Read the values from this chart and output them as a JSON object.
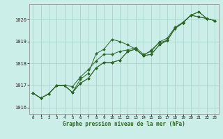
{
  "title": "Graphe pression niveau de la mer (hPa)",
  "bg_color": "#cceee8",
  "grid_color": "#aad4cc",
  "line_color": "#2d6628",
  "xlim": [
    -0.5,
    23.5
  ],
  "ylim": [
    1015.7,
    1020.7
  ],
  "yticks": [
    1016,
    1017,
    1018,
    1019,
    1020
  ],
  "xticks": [
    0,
    1,
    2,
    3,
    4,
    5,
    6,
    7,
    8,
    9,
    10,
    11,
    12,
    13,
    14,
    15,
    16,
    17,
    18,
    19,
    20,
    21,
    22,
    23
  ],
  "series": [
    [
      1016.65,
      1016.42,
      1016.62,
      1017.0,
      1017.0,
      1016.68,
      1017.28,
      1017.55,
      1018.45,
      1018.65,
      1019.1,
      1019.0,
      1018.85,
      1018.65,
      1018.35,
      1018.62,
      1018.95,
      1019.05,
      1019.6,
      1019.85,
      1020.2,
      1020.12,
      1020.05,
      1019.95
    ],
    [
      1016.65,
      1016.42,
      1016.62,
      1017.0,
      1017.0,
      1016.68,
      1017.1,
      1017.32,
      1017.8,
      1018.05,
      1018.05,
      1018.15,
      1018.55,
      1018.65,
      1018.35,
      1018.42,
      1018.85,
      1019.05,
      1019.6,
      1019.85,
      1020.2,
      1020.12,
      1020.05,
      1019.95
    ],
    [
      1016.65,
      1016.42,
      1016.62,
      1017.0,
      1017.0,
      1016.68,
      1017.1,
      1017.32,
      1017.8,
      1018.05,
      1018.05,
      1018.15,
      1018.55,
      1018.65,
      1018.35,
      1018.42,
      1018.85,
      1019.05,
      1019.6,
      1019.85,
      1020.2,
      1020.35,
      1020.05,
      1019.95
    ],
    [
      1016.65,
      1016.42,
      1016.62,
      1017.0,
      1017.0,
      1016.95,
      1017.38,
      1017.72,
      1018.12,
      1018.42,
      1018.42,
      1018.55,
      1018.62,
      1018.72,
      1018.42,
      1018.55,
      1018.98,
      1019.15,
      1019.65,
      1019.88,
      1020.2,
      1020.35,
      1020.05,
      1019.95
    ]
  ]
}
